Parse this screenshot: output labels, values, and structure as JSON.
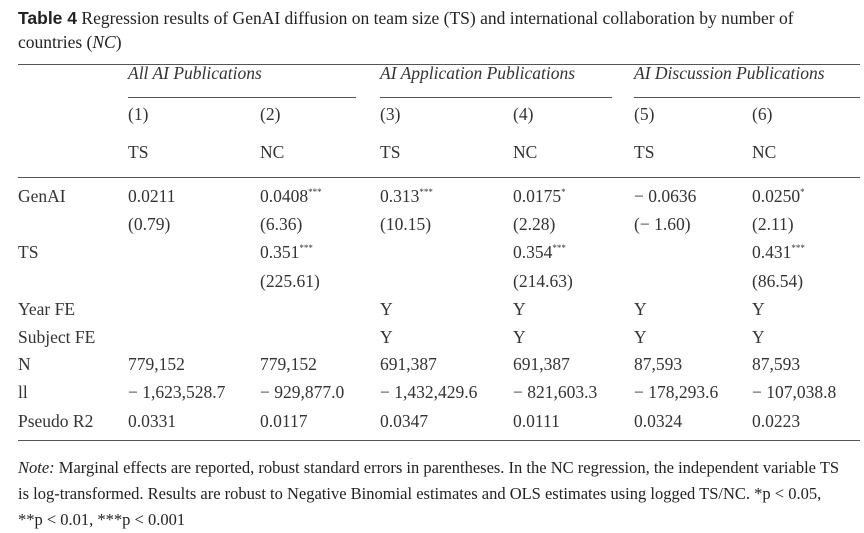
{
  "caption": {
    "label": "Table 4",
    "text": " Regression results of GenAI diffusion on team size (TS) and international collaboration by number of countries (",
    "nc": "NC",
    "close": ")"
  },
  "groups": [
    "All AI Publications",
    "AI Application Publications",
    "AI Discussion Publications"
  ],
  "col_numbers": [
    "(1)",
    "(2)",
    "(3)",
    "(4)",
    "(5)",
    "(6)"
  ],
  "col_vars": [
    "TS",
    "NC",
    "TS",
    "NC",
    "TS",
    "NC"
  ],
  "rows": [
    {
      "label": "GenAI",
      "cells": [
        {
          "v": "0.0211",
          "s": ""
        },
        {
          "v": "0.0408",
          "s": "***"
        },
        {
          "v": "0.313",
          "s": "***"
        },
        {
          "v": "0.0175",
          "s": "*"
        },
        {
          "v": "− 0.0636",
          "s": ""
        },
        {
          "v": "0.0250",
          "s": "*"
        }
      ]
    },
    {
      "label": "",
      "cells": [
        {
          "v": "(0.79)",
          "s": ""
        },
        {
          "v": "(6.36)",
          "s": ""
        },
        {
          "v": "(10.15)",
          "s": ""
        },
        {
          "v": "(2.28)",
          "s": ""
        },
        {
          "v": "(− 1.60)",
          "s": ""
        },
        {
          "v": "(2.11)",
          "s": ""
        }
      ]
    },
    {
      "label": "TS",
      "cells": [
        {
          "v": "",
          "s": ""
        },
        {
          "v": "0.351",
          "s": "***"
        },
        {
          "v": "",
          "s": ""
        },
        {
          "v": "0.354",
          "s": "***"
        },
        {
          "v": "",
          "s": ""
        },
        {
          "v": "0.431",
          "s": "***"
        }
      ]
    },
    {
      "label": "",
      "cells": [
        {
          "v": "",
          "s": ""
        },
        {
          "v": "(225.61)",
          "s": ""
        },
        {
          "v": "",
          "s": ""
        },
        {
          "v": "(214.63)",
          "s": ""
        },
        {
          "v": "",
          "s": ""
        },
        {
          "v": "(86.54)",
          "s": ""
        }
      ]
    },
    {
      "label": "Year FE",
      "cells": [
        {
          "v": "",
          "s": ""
        },
        {
          "v": "",
          "s": ""
        },
        {
          "v": "Y",
          "s": ""
        },
        {
          "v": "Y",
          "s": ""
        },
        {
          "v": "Y",
          "s": ""
        },
        {
          "v": "Y",
          "s": ""
        }
      ]
    },
    {
      "label": "Subject FE",
      "cells": [
        {
          "v": "",
          "s": ""
        },
        {
          "v": "",
          "s": ""
        },
        {
          "v": "Y",
          "s": ""
        },
        {
          "v": "Y",
          "s": ""
        },
        {
          "v": "Y",
          "s": ""
        },
        {
          "v": "Y",
          "s": ""
        }
      ]
    },
    {
      "label": "N",
      "cells": [
        {
          "v": "779,152",
          "s": ""
        },
        {
          "v": "779,152",
          "s": ""
        },
        {
          "v": "691,387",
          "s": ""
        },
        {
          "v": "691,387",
          "s": ""
        },
        {
          "v": "87,593",
          "s": ""
        },
        {
          "v": "87,593",
          "s": ""
        }
      ]
    },
    {
      "label": "ll",
      "cells": [
        {
          "v": "− 1,623,528.7",
          "s": ""
        },
        {
          "v": "− 929,877.0",
          "s": ""
        },
        {
          "v": "− 1,432,429.6",
          "s": ""
        },
        {
          "v": "− 821,603.3",
          "s": ""
        },
        {
          "v": "− 178,293.6",
          "s": ""
        },
        {
          "v": "− 107,038.8",
          "s": ""
        }
      ]
    },
    {
      "label": "Pseudo R2",
      "cells": [
        {
          "v": "0.0331",
          "s": ""
        },
        {
          "v": "0.0117",
          "s": ""
        },
        {
          "v": "0.0347",
          "s": ""
        },
        {
          "v": "0.0111",
          "s": ""
        },
        {
          "v": "0.0324",
          "s": ""
        },
        {
          "v": "0.0223",
          "s": ""
        }
      ]
    }
  ],
  "note": {
    "label": "Note:",
    "text": " Marginal effects are reported, robust standard errors in parentheses. In the NC regression, the independent variable TS is log-transformed. Results are robust to Negative Binomial estimates and OLS estimates using logged TS/NC. *p < 0.05, **p < 0.01, ***p < 0.001"
  }
}
